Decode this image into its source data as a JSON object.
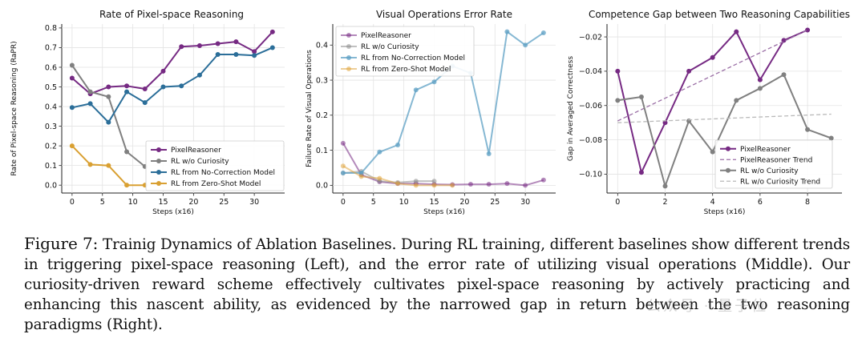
{
  "chart_data": [
    {
      "type": "line",
      "title": "Rate of Pixel-space Reasoning",
      "xlabel": "Steps (x16)",
      "ylabel": "Rate of Pixel-space Reasoning (RaPR)",
      "xlim": [
        -1.7,
        35
      ],
      "ylim": [
        -0.04,
        0.82
      ],
      "xticks": [
        0,
        5,
        10,
        15,
        20,
        25,
        30
      ],
      "yticks": [
        0.0,
        0.1,
        0.2,
        0.3,
        0.4,
        0.5,
        0.6,
        0.7,
        0.8
      ],
      "ytick_labels": [
        "0.0",
        "0.1",
        "0.2",
        "0.3",
        "0.4",
        "0.5",
        "0.6",
        "0.7",
        "0.8"
      ],
      "legend_position": "lower-right",
      "series": [
        {
          "name": "PixelReasoner",
          "color": "#762a83",
          "alpha": 1.0,
          "x": [
            0,
            3,
            6,
            9,
            12,
            15,
            18,
            21,
            24,
            27,
            30,
            33
          ],
          "y": [
            0.545,
            0.465,
            0.5,
            0.505,
            0.49,
            0.58,
            0.705,
            0.71,
            0.72,
            0.73,
            0.68,
            0.78
          ]
        },
        {
          "name": "RL w/o Curiosity",
          "color": "#808080",
          "alpha": 1.0,
          "x": [
            0,
            3,
            6,
            9,
            12
          ],
          "y": [
            0.61,
            0.475,
            0.45,
            0.17,
            0.095
          ]
        },
        {
          "name": "RL from No-Correction Model",
          "color": "#2b6e99",
          "alpha": 1.0,
          "x": [
            0,
            3,
            6,
            9,
            12,
            15,
            18,
            21,
            24,
            27,
            30,
            33
          ],
          "y": [
            0.395,
            0.415,
            0.32,
            0.475,
            0.42,
            0.5,
            0.505,
            0.56,
            0.665,
            0.665,
            0.66,
            0.7
          ]
        },
        {
          "name": "RL from Zero-Shot Model",
          "color": "#d9a032",
          "alpha": 1.0,
          "x": [
            0,
            3,
            6,
            9,
            12
          ],
          "y": [
            0.2,
            0.105,
            0.1,
            0.0,
            0.0
          ]
        }
      ]
    },
    {
      "type": "line",
      "title": "Visual Operations Error Rate",
      "xlabel": "Steps (x16)",
      "ylabel": "Failure Rate of Visual Operations",
      "xlim": [
        -1.7,
        35
      ],
      "ylim": [
        -0.022,
        0.46
      ],
      "xticks": [
        0,
        5,
        10,
        15,
        20,
        25,
        30
      ],
      "yticks": [
        0.0,
        0.1,
        0.2,
        0.3,
        0.4
      ],
      "ytick_labels": [
        "0.0",
        "0.1",
        "0.2",
        "0.3",
        "0.4"
      ],
      "legend_position": "upper-left",
      "series": [
        {
          "name": "PixelReasoner",
          "color": "#762a83",
          "alpha": 0.55,
          "x": [
            0,
            3,
            6,
            9,
            12,
            15,
            18,
            21,
            24,
            27,
            30,
            33
          ],
          "y": [
            0.12,
            0.03,
            0.01,
            0.005,
            0.005,
            0.003,
            0.002,
            0.003,
            0.003,
            0.005,
            0.0,
            0.015
          ]
        },
        {
          "name": "RL w/o Curiosity",
          "color": "#8e8e8e",
          "alpha": 0.55,
          "x": [
            0,
            3,
            6,
            9,
            12,
            15
          ],
          "y": [
            0.035,
            0.04,
            0.012,
            0.008,
            0.012,
            0.012
          ]
        },
        {
          "name": "RL from No-Correction Model",
          "color": "#5ea0c4",
          "alpha": 0.75,
          "x": [
            0,
            3,
            6,
            9,
            12,
            15,
            18,
            21,
            24,
            27,
            30,
            33
          ],
          "y": [
            0.035,
            0.035,
            0.095,
            0.115,
            0.272,
            0.295,
            0.34,
            0.32,
            0.09,
            0.438,
            0.4,
            0.435
          ]
        },
        {
          "name": "RL from Zero-Shot Model",
          "color": "#e0a640",
          "alpha": 0.55,
          "x": [
            0,
            3,
            6,
            9,
            12,
            15,
            18
          ],
          "y": [
            0.055,
            0.025,
            0.02,
            0.005,
            0.0,
            0.0,
            0.0
          ]
        }
      ]
    },
    {
      "type": "line",
      "title": "Competence Gap between Two Reasoning Capabilities",
      "xlabel": "Steps (x16)",
      "ylabel": "Gap in Averaged Correctness",
      "xlim": [
        -0.45,
        9.45
      ],
      "ylim": [
        -0.111,
        -0.0125
      ],
      "xticks": [
        0,
        2,
        4,
        6,
        8
      ],
      "yticks": [
        -0.1,
        -0.08,
        -0.06,
        -0.04,
        -0.02
      ],
      "ytick_labels": [
        "−0.10",
        "−0.08",
        "−0.06",
        "−0.04",
        "−0.02"
      ],
      "legend_position": "lower-right",
      "series": [
        {
          "name": "PixelReasoner",
          "color": "#762a83",
          "alpha": 1.0,
          "style": "solid-marker",
          "x": [
            0,
            1,
            2,
            3,
            4,
            5,
            6,
            7,
            8
          ],
          "y": [
            -0.04,
            -0.099,
            -0.07,
            -0.04,
            -0.032,
            -0.017,
            -0.045,
            -0.022,
            -0.016
          ]
        },
        {
          "name": "PixelReasoner Trend",
          "color": "#9b6fa6",
          "alpha": 1.0,
          "style": "dashed",
          "x": [
            0,
            8
          ],
          "y": [
            -0.069,
            -0.016
          ]
        },
        {
          "name": "RL w/o Curiosity",
          "color": "#808080",
          "alpha": 1.0,
          "style": "solid-marker",
          "x": [
            0,
            1,
            2,
            3,
            4,
            5,
            6,
            7,
            8,
            9
          ],
          "y": [
            -0.057,
            -0.055,
            -0.107,
            -0.069,
            -0.087,
            -0.057,
            -0.05,
            -0.042,
            -0.074,
            -0.079
          ]
        },
        {
          "name": "RL w/o Curiosity Trend",
          "color": "#b9b9b9",
          "alpha": 1.0,
          "style": "dashed",
          "x": [
            0,
            9
          ],
          "y": [
            -0.07,
            -0.065
          ]
        }
      ]
    }
  ],
  "caption": {
    "label": "Figure 7:",
    "title": "Trainig Dynamics of Ablation Baselines.",
    "body": "During RL training, different baselines show different trends in triggering pixel-space reasoning (Left), and the error rate of utilizing visual operations (Middle). Our curiosity-driven reward scheme effectively cultivates pixel-space reasoning by actively practicing and enhancing this nascent ability, as evidenced by the narrowed gap in return between the two reasoning paradigms (Right)."
  },
  "watermark": "公众号 · 量子位"
}
